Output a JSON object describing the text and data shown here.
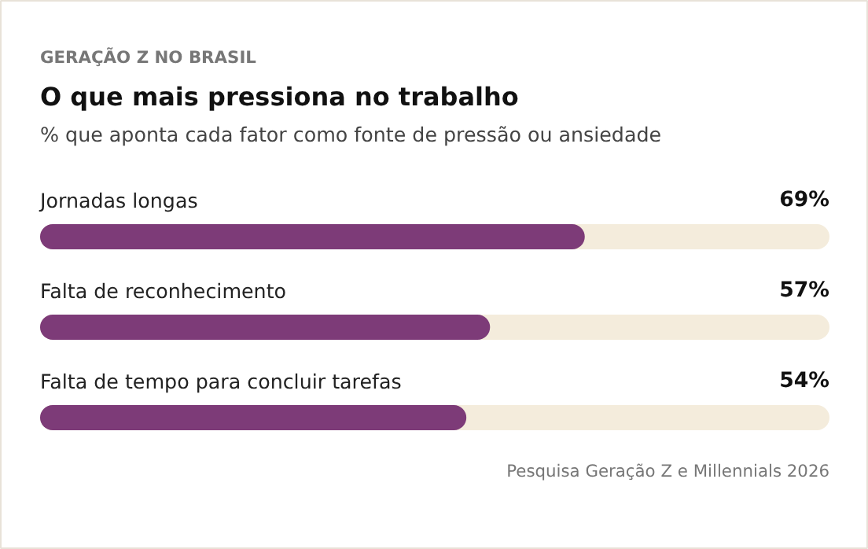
{
  "chart_data": {
    "type": "bar",
    "orientation": "horizontal",
    "title": "O que mais pressiona no trabalho",
    "subtitle": "% que aponta cada fator como fonte de pressão ou ansiedade",
    "annotations": [
      "GERAÇÃO Z NO BRASIL",
      "Pesquisa Geração Z e Millennials 2026"
    ],
    "categories": [
      "Jornadas longas",
      "Falta de reconhecimento",
      "Falta de tempo para concluir tarefas"
    ],
    "values": [
      69,
      57,
      54
    ],
    "value_labels": [
      "69%",
      "57%",
      "54%"
    ],
    "color": "#7d3b78",
    "xlim": [
      0,
      100
    ],
    "tick_labels": false,
    "grid": false
  }
}
